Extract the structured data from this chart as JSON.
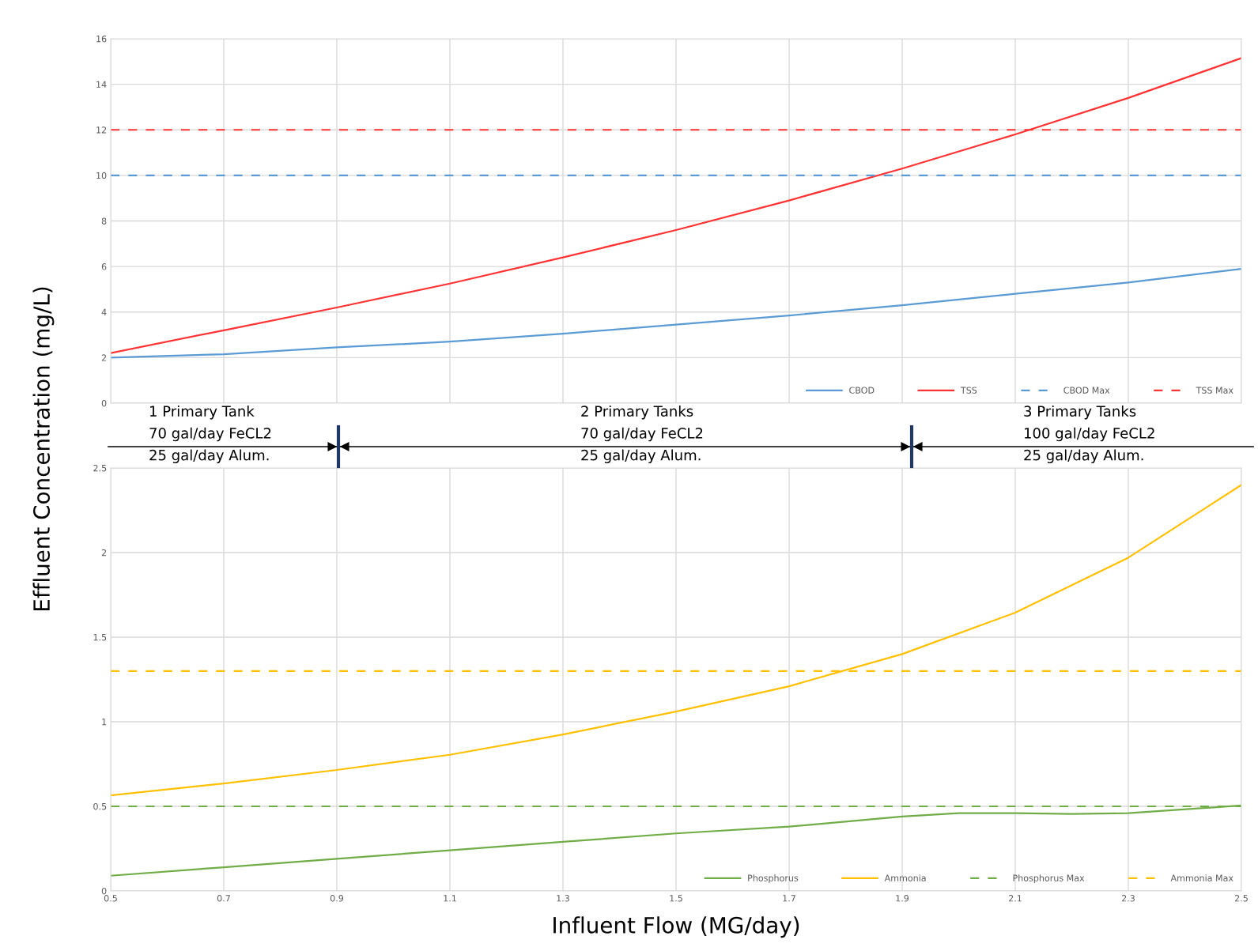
{
  "chart_data": [
    {
      "type": "line",
      "ylabel": "Effluent Concentration (mg/L)",
      "xlim": [
        0.5,
        2.5
      ],
      "ylim": [
        0,
        16
      ],
      "yticks": [
        0,
        2,
        4,
        6,
        8,
        10,
        12,
        14,
        16
      ],
      "xticks": [
        0.5,
        0.7,
        0.9,
        1.1,
        1.3,
        1.5,
        1.7,
        1.9,
        2.1,
        2.3,
        2.5
      ],
      "tick_labels": "y",
      "grid": true,
      "legend": "bottom right",
      "marker": "none",
      "x": [
        0.5,
        0.7,
        0.9,
        1.1,
        1.3,
        1.5,
        1.7,
        1.9,
        2.1,
        2.3,
        2.5
      ],
      "series": [
        {
          "name": "CBOD",
          "color": "#5b9bd5",
          "line_style": "solid",
          "values": [
            2.0,
            2.15,
            2.45,
            2.7,
            3.05,
            3.45,
            3.85,
            4.3,
            4.8,
            5.3,
            5.9
          ]
        },
        {
          "name": "TSS",
          "color": "#ff3333",
          "line_style": "solid",
          "values": [
            2.2,
            3.2,
            4.2,
            5.25,
            6.4,
            7.6,
            8.9,
            10.3,
            11.8,
            13.4,
            15.15
          ]
        },
        {
          "name": "CBOD Max",
          "color": "#5b9bd5",
          "line_style": "dashed",
          "x": [
            0.5,
            2.5
          ],
          "values": [
            10,
            10
          ]
        },
        {
          "name": "TSS Max",
          "color": "#ff3333",
          "line_style": "dashed",
          "x": [
            0.5,
            2.5
          ],
          "values": [
            12,
            12
          ]
        }
      ],
      "annotations": [
        "1 Primary Tank\n70 gal/day FeCL2\n25 gal/day Alum.",
        "2 Primary Tanks\n70 gal/day FeCL2\n25 gal/day Alum.",
        "3 Primary Tanks\n100 gal/day FeCL2\n25 gal/day Alum."
      ]
    },
    {
      "type": "line",
      "xlabel": "Influent Flow (MG/day)",
      "xlim": [
        0.5,
        2.5
      ],
      "ylim": [
        0,
        2.5
      ],
      "xticks": [
        0.5,
        0.7,
        0.9,
        1.1,
        1.3,
        1.5,
        1.7,
        1.9,
        2.1,
        2.3,
        2.5
      ],
      "yticks": [
        0,
        0.5,
        1,
        1.5,
        2,
        2.5
      ],
      "grid": true,
      "legend": "bottom right",
      "marker": "none",
      "x": [
        0.5,
        0.7,
        0.9,
        1.1,
        1.3,
        1.5,
        1.7,
        1.9,
        2.1,
        2.3,
        2.5
      ],
      "series": [
        {
          "name": "Phosphorus",
          "color": "#70ad47",
          "line_style": "solid",
          "x": [
            0.5,
            0.7,
            0.9,
            1.1,
            1.3,
            1.5,
            1.7,
            1.9,
            2.0,
            2.1,
            2.2,
            2.3,
            2.5
          ],
          "values": [
            0.09,
            0.14,
            0.19,
            0.24,
            0.29,
            0.34,
            0.38,
            0.44,
            0.46,
            0.46,
            0.455,
            0.46,
            0.505
          ]
        },
        {
          "name": "Ammonia",
          "color": "#ffc000",
          "line_style": "solid",
          "values": [
            0.565,
            0.635,
            0.715,
            0.805,
            0.925,
            1.06,
            1.21,
            1.4,
            1.645,
            1.97,
            2.4
          ]
        },
        {
          "name": "Phosphorus Max",
          "color": "#70ad47",
          "line_style": "dashed",
          "x": [
            0.5,
            2.5
          ],
          "values": [
            0.5,
            0.5
          ]
        },
        {
          "name": "Ammonia Max",
          "color": "#ffc000",
          "line_style": "dashed",
          "x": [
            0.5,
            2.5
          ],
          "values": [
            1.3,
            1.3
          ]
        }
      ]
    }
  ]
}
